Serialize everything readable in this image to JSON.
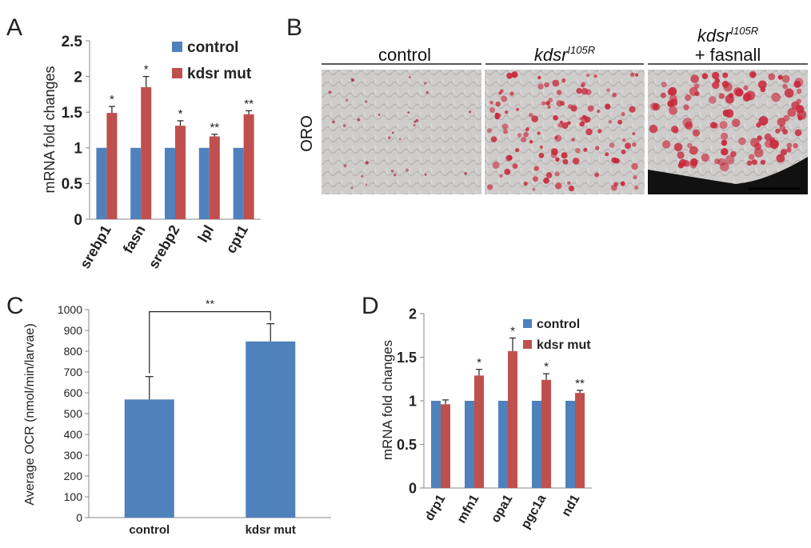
{
  "panels": {
    "A": "A",
    "B": "B",
    "C": "C",
    "D": "D"
  },
  "colors": {
    "control": "#4F81BD",
    "mutant": "#C0504D"
  },
  "chart_data": [
    {
      "panel": "A",
      "type": "bar",
      "ylabel": "mRNA fold changes",
      "ylim": [
        0,
        2.5
      ],
      "yticks": [
        "0",
        "0.5",
        "1",
        "1.5",
        "2",
        "2.5"
      ],
      "categories": [
        "srebp1",
        "fasn",
        "srebp2",
        "lpl",
        "cpt1"
      ],
      "series": [
        {
          "name": "control",
          "values": [
            1,
            1,
            1,
            1,
            1
          ]
        },
        {
          "name": "kdsr mut",
          "values": [
            1.49,
            1.85,
            1.31,
            1.16,
            1.47
          ],
          "errors": [
            0.09,
            0.15,
            0.07,
            0.03,
            0.05
          ]
        }
      ],
      "significance": [
        "*",
        "*",
        "*",
        "**",
        "**"
      ],
      "legend": "top-right",
      "grid": false
    },
    {
      "panel": "C",
      "type": "bar",
      "ylabel": "Average OCR (nmol/min/larvae)",
      "ylim": [
        0,
        1000
      ],
      "yticks": [
        "0",
        "100",
        "200",
        "300",
        "400",
        "500",
        "600",
        "700",
        "800",
        "900",
        "1000"
      ],
      "categories": [
        "control",
        "kdsr mut"
      ],
      "values": [
        568,
        847
      ],
      "errors": [
        110,
        85
      ],
      "significance": "**",
      "grid": false
    },
    {
      "panel": "D",
      "type": "bar",
      "ylabel": "mRNA fold changes",
      "ylim": [
        0,
        2
      ],
      "yticks": [
        "0",
        "0.5",
        "1",
        "1.5",
        "2"
      ],
      "categories": [
        "drp1",
        "mfn1",
        "opa1",
        "pgc1a",
        "nd1"
      ],
      "series": [
        {
          "name": "control",
          "values": [
            1,
            1,
            1,
            1,
            1
          ]
        },
        {
          "name": "kdsr mut",
          "values": [
            0.96,
            1.29,
            1.57,
            1.24,
            1.09
          ],
          "errors": [
            0.05,
            0.07,
            0.15,
            0.07,
            0.03
          ]
        }
      ],
      "significance": [
        "",
        "*",
        "*",
        "*",
        "**"
      ],
      "legend": "top-right",
      "grid": false
    }
  ],
  "panel_b": {
    "row_label": "ORO",
    "columns": [
      {
        "label": "control"
      },
      {
        "label_main": "kdsr",
        "label_sup": "I105R"
      },
      {
        "label_main": "kdsr",
        "label_sup": "I105R",
        "label_line2": "+ fasnall"
      }
    ]
  }
}
